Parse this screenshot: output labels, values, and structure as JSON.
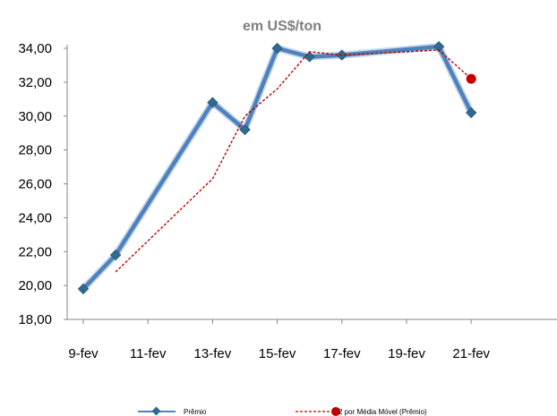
{
  "chart_data": {
    "type": "line",
    "title": "",
    "subtitle": "em US$/ton",
    "xlabel": "",
    "ylabel": "",
    "x": [
      "9-fev",
      "10-fev",
      "11-fev",
      "12-fev",
      "13-fev",
      "14-fev",
      "15-fev",
      "16-fev",
      "17-fev",
      "18-fev",
      "19-fev",
      "20-fev",
      "21-fev"
    ],
    "x_tick_labels": [
      "9-fev",
      "11-fev",
      "13-fev",
      "15-fev",
      "17-fev",
      "19-fev",
      "21-fev"
    ],
    "y_tick_labels": [
      "18,00",
      "20,00",
      "22,00",
      "24,00",
      "26,00",
      "28,00",
      "30,00",
      "32,00",
      "34,00"
    ],
    "ylim": [
      18,
      34
    ],
    "grid": false,
    "legend_position": "bottom",
    "series": [
      {
        "name": "Prêmio",
        "color": "#4f81bd",
        "values": [
          19.8,
          21.8,
          null,
          null,
          30.8,
          29.2,
          34.0,
          33.5,
          33.6,
          null,
          null,
          34.1,
          30.2
        ]
      },
      {
        "name": "2 por Média Móvel (Prêmio)",
        "color": "#c00000",
        "values": [
          null,
          20.8,
          null,
          null,
          26.3,
          30.0,
          31.6,
          33.8,
          33.6,
          null,
          null,
          33.9,
          32.2
        ]
      }
    ]
  }
}
